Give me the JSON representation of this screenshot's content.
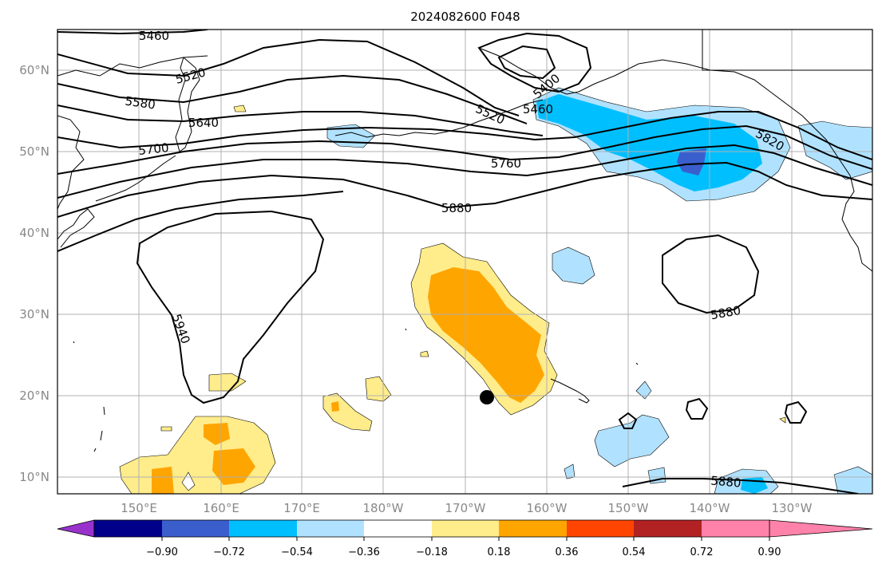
{
  "title": "2024082600 F048",
  "lat_ticks": [
    "60°N",
    "50°N",
    "40°N",
    "30°N",
    "20°N",
    "10°N"
  ],
  "lon_ticks": [
    "150°E",
    "160°E",
    "170°E",
    "180°W",
    "170°W",
    "160°W",
    "150°W",
    "140°W",
    "130°W"
  ],
  "contour_labels": [
    "5460",
    "5520",
    "5580",
    "5640",
    "5700",
    "5520",
    "5400",
    "5460",
    "5760",
    "5820",
    "5880",
    "5940",
    "5880",
    "5880"
  ],
  "colorbar": {
    "colors": [
      "#9932cc",
      "#00008b",
      "#3a5fcd",
      "#00bfff",
      "#b0e2ff",
      "#ffffff",
      "#ffec8b",
      "#ffa500",
      "#ff4500",
      "#b22222",
      "#ff82ab"
    ],
    "labels": [
      "−0.90",
      "−0.72",
      "−0.54",
      "−0.36",
      "−0.18",
      "0.18",
      "0.36",
      "0.54",
      "0.72",
      "0.90"
    ]
  },
  "map_extent": {
    "lon": [
      140,
      240
    ],
    "lat": [
      8,
      65
    ]
  },
  "marker": {
    "lon": 193,
    "lat": 20
  }
}
